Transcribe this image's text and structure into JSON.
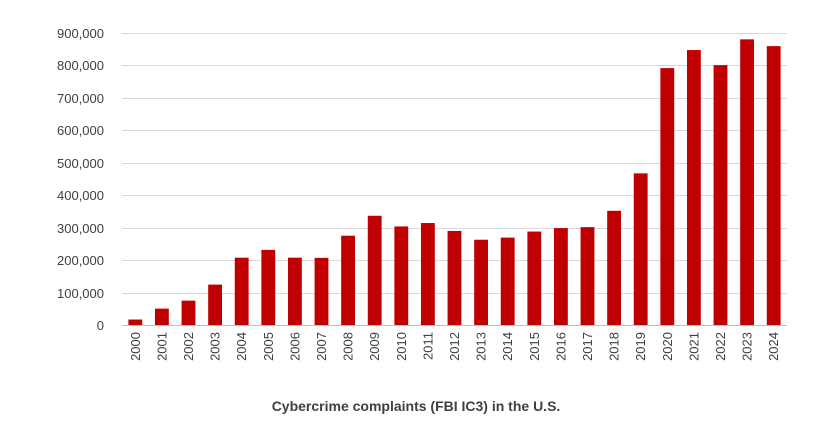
{
  "chart_data": {
    "type": "bar",
    "title": "Cybercrime complaints (FBI IC3) in the U.S.",
    "xlabel": "",
    "ylabel": "",
    "categories": [
      "2000",
      "2001",
      "2002",
      "2003",
      "2004",
      "2005",
      "2006",
      "2007",
      "2008",
      "2009",
      "2010",
      "2011",
      "2012",
      "2013",
      "2014",
      "2015",
      "2016",
      "2017",
      "2018",
      "2019",
      "2020",
      "2021",
      "2022",
      "2023",
      "2024"
    ],
    "values": [
      16838,
      50412,
      75064,
      124509,
      207449,
      231493,
      207492,
      206884,
      275284,
      336655,
      303809,
      314246,
      289874,
      262813,
      269422,
      288012,
      298728,
      301580,
      351937,
      467361,
      791790,
      847376,
      800944,
      880418,
      859532
    ],
    "ylim": [
      0,
      900000
    ],
    "yticks": [
      "0",
      "100,000",
      "200,000",
      "300,000",
      "400,000",
      "500,000",
      "600,000",
      "700,000",
      "800,000",
      "900,000"
    ],
    "ytick_values": [
      0,
      100000,
      200000,
      300000,
      400000,
      500000,
      600000,
      700000,
      800000,
      900000
    ],
    "grid": true,
    "legend": "none",
    "bar_color": "#c00000",
    "grid_color": "#d9d9d9",
    "axis_color": "#bfbfbf"
  }
}
